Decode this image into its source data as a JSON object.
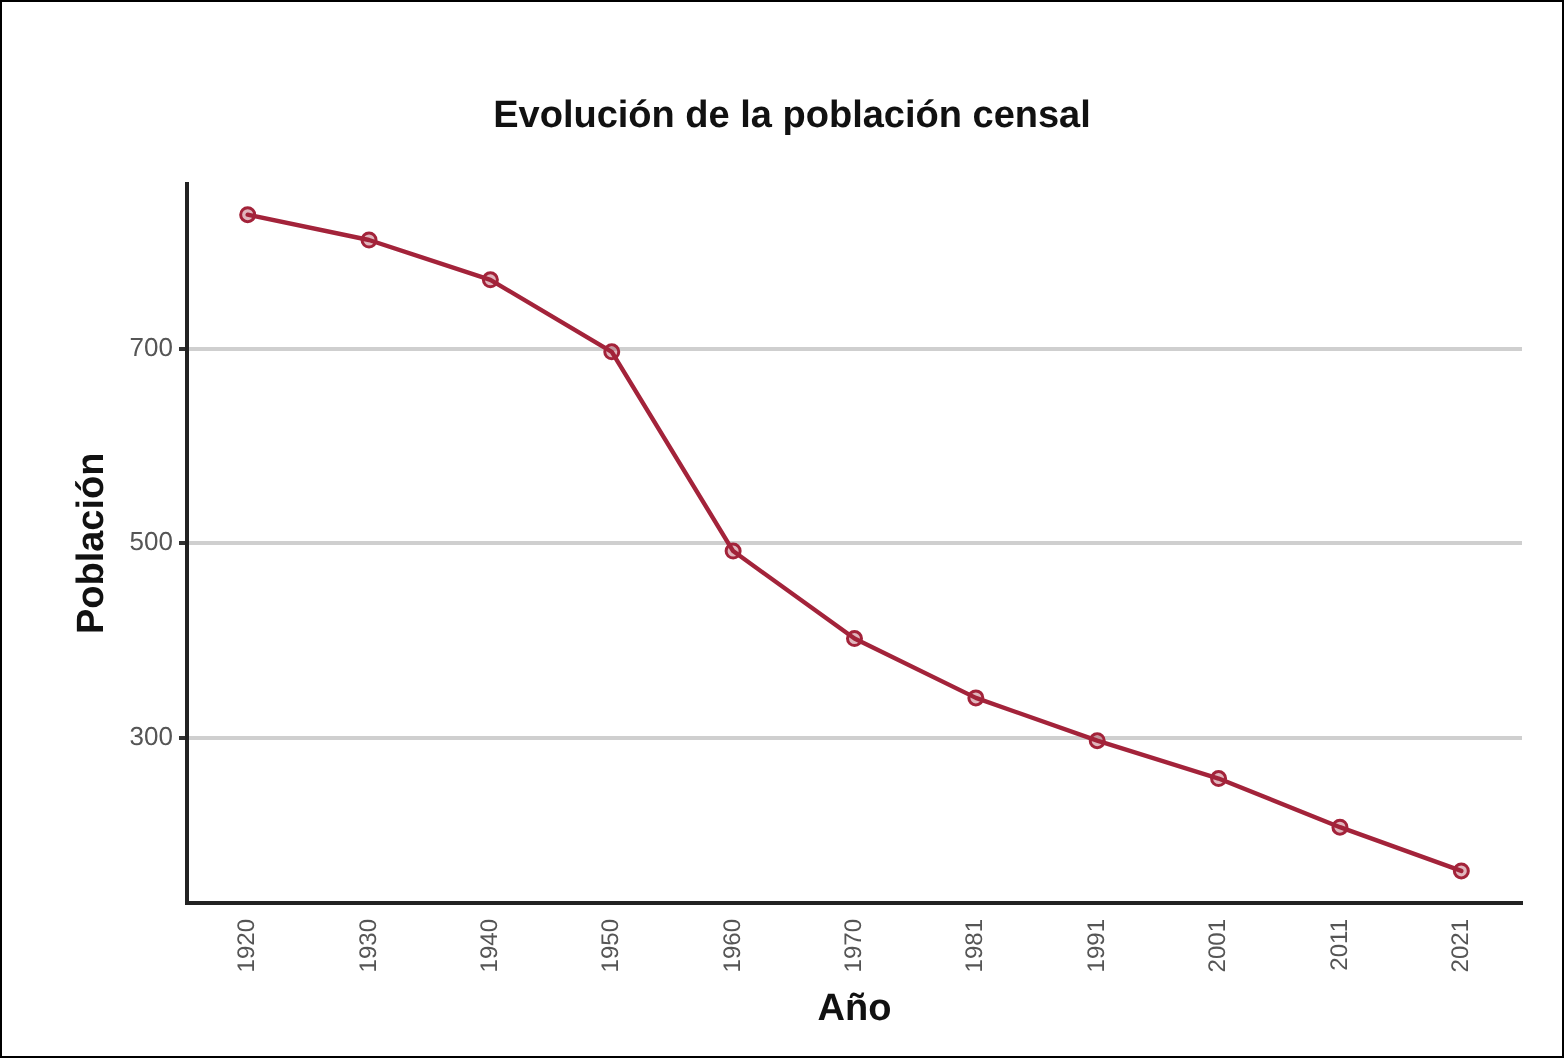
{
  "chart_data": {
    "type": "line",
    "title": "Evolución de la población censal",
    "xlabel": "Año",
    "ylabel": "Población",
    "categories": [
      "1920",
      "1930",
      "1940",
      "1950",
      "1960",
      "1970",
      "1981",
      "1991",
      "2001",
      "2011",
      "2021"
    ],
    "series": [
      {
        "color": "#a3233a",
        "values": [
          838,
          812,
          771,
          697,
          492,
          402,
          341,
          297,
          258,
          208,
          163
        ]
      }
    ],
    "ylim": [
      130,
      870
    ],
    "yticks": [
      300,
      500,
      700
    ],
    "grid": "y",
    "legend": false,
    "marker": "circle",
    "line_style": "solid"
  }
}
